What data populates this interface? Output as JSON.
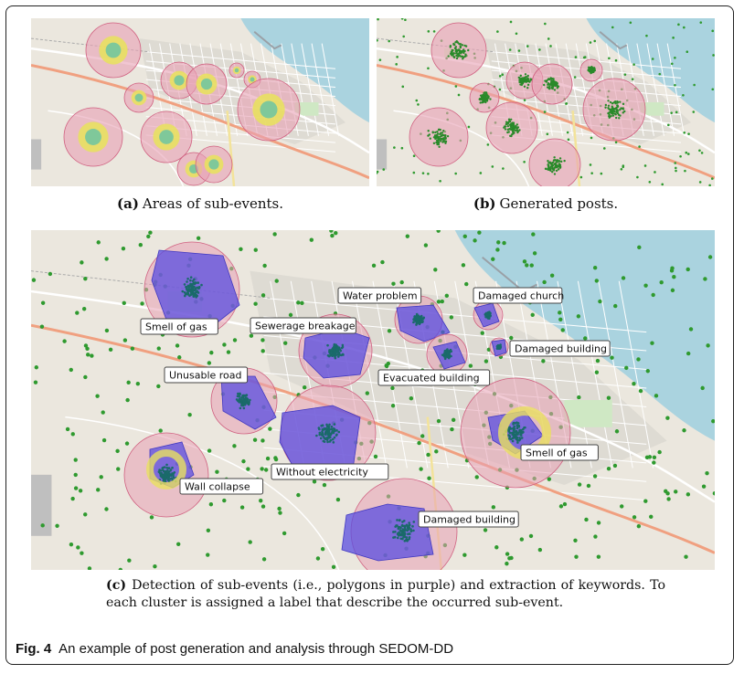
{
  "figure": {
    "panel_a": {
      "letter": "(a)",
      "caption": "Areas of sub-events."
    },
    "panel_b": {
      "letter": "(b)",
      "caption": "Generated posts."
    },
    "panel_c": {
      "letter": "(c)",
      "caption": "Detection of sub-events (i.e., polygons in purple) and extraction of keywords. To each cluster is assigned a label that describe the occurred sub-event.",
      "labels": [
        "Smell of gas",
        "Sewerage breakage",
        "Water problem",
        "Damaged church",
        "Damaged building",
        "Evacuated building",
        "Unusable road",
        "Without electricity",
        "Wall collapse",
        "Smell of gas",
        "Damaged building"
      ]
    },
    "fig_label": "Fig. 4",
    "fig_caption": "An example of post generation and analysis through SEDOM-DD",
    "colors": {
      "area_pink": "#e8a0b4",
      "area_yellow": "#e8e060",
      "area_green": "#7fc89a",
      "post_green": "#2f9a2f",
      "polygon_purple": "#5a4ee0",
      "sea": "#aad3df"
    }
  }
}
